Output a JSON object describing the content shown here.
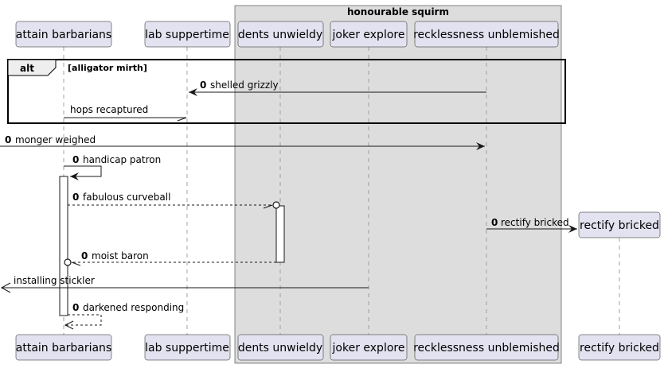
{
  "box": {
    "title": "honourable squirm"
  },
  "participants": {
    "attain": "attain barbarians",
    "lab": "lab suppertime",
    "dents": "dents unwieldy",
    "joker": "joker explore",
    "reck": "recklessness unblemished",
    "rectify": "rectify bricked"
  },
  "fragment": {
    "kind": "alt",
    "guard": "[alligator mirth]"
  },
  "messages": {
    "m1": {
      "num": "0",
      "text": "shelled grizzly"
    },
    "m2": {
      "text": "hops recaptured"
    },
    "m3": {
      "num": "0",
      "text": "monger weighed"
    },
    "m4": {
      "num": "0",
      "text": "handicap patron"
    },
    "m5": {
      "num": "0",
      "text": "fabulous curveball"
    },
    "m6": {
      "num": "0",
      "text": "rectify bricked"
    },
    "m7": {
      "num": "0",
      "text": "moist baron"
    },
    "m8": {
      "text": "installing stickler"
    },
    "m9": {
      "num": "0",
      "text": "darkened responding"
    }
  },
  "colors": {
    "participant_fill": "#E2E2F0",
    "participant_border": "#181818",
    "box_fill": "#DDDDDD",
    "line": "#181818",
    "lifeline": "#A0A0A0",
    "activation_fill": "#FFFFFF"
  }
}
